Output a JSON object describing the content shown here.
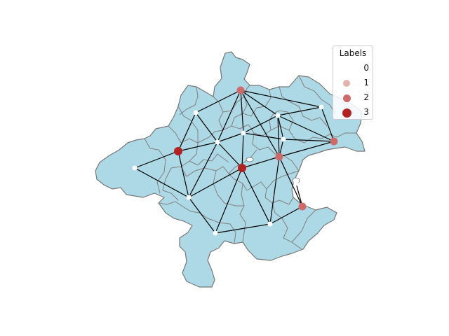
{
  "legend": {
    "title": "Labels",
    "entries": [
      {
        "label": "0",
        "color": "#ffffff"
      },
      {
        "label": "1",
        "color": "#e3b3ae"
      },
      {
        "label": "2",
        "color": "#cd6a6a"
      },
      {
        "label": "3",
        "color": "#b22222"
      }
    ]
  },
  "colors": {
    "region_fill": "#add8e6",
    "region_border": "#777777",
    "edge": "#000000"
  }
}
